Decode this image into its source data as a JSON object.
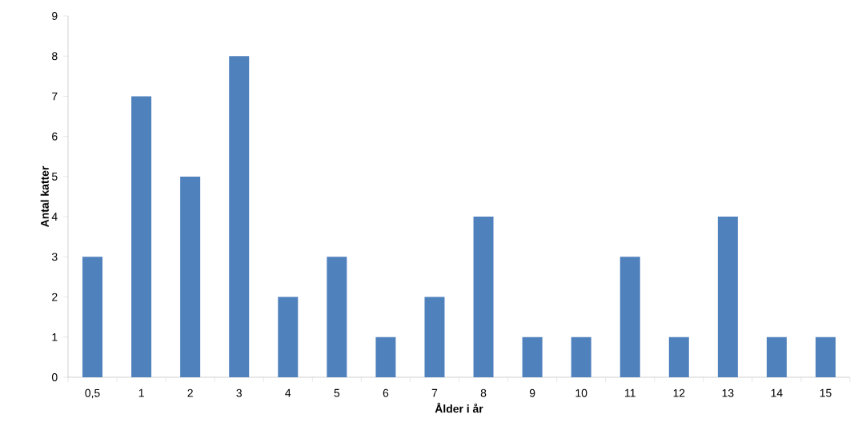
{
  "chart_data": {
    "type": "bar",
    "xlabel": "Ålder i år",
    "ylabel": "Antal katter",
    "categories": [
      "0,5",
      "1",
      "2",
      "3",
      "4",
      "5",
      "6",
      "7",
      "8",
      "9",
      "10",
      "11",
      "12",
      "13",
      "14",
      "15"
    ],
    "values": [
      3,
      7,
      5,
      8,
      2,
      3,
      1,
      2,
      4,
      1,
      1,
      3,
      1,
      4,
      1,
      1
    ],
    "color": "#4f81bd",
    "ylim": [
      0,
      9
    ],
    "yticks": [
      0,
      1,
      2,
      3,
      4,
      5,
      6,
      7,
      8,
      9
    ]
  }
}
